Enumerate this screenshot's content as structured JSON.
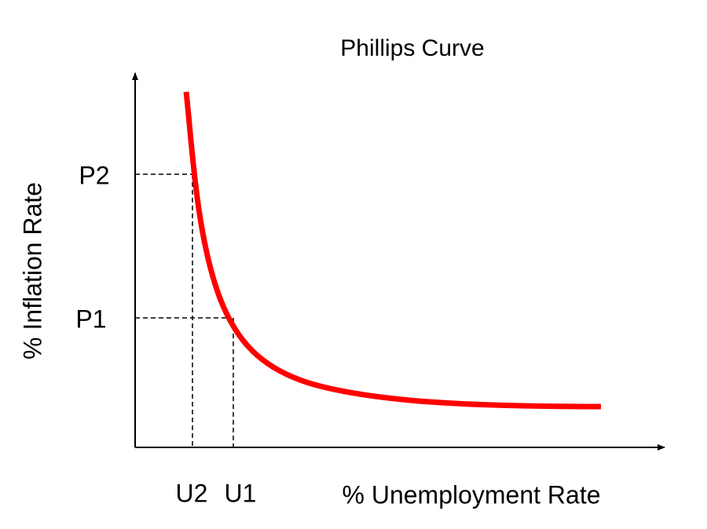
{
  "title": "Phillips Curve",
  "y_axis_label": "% Inflation Rate",
  "x_axis_label": "% Unemployment Rate",
  "y_markers": [
    "P2",
    "P1"
  ],
  "x_markers": [
    "U2",
    "U1"
  ]
}
